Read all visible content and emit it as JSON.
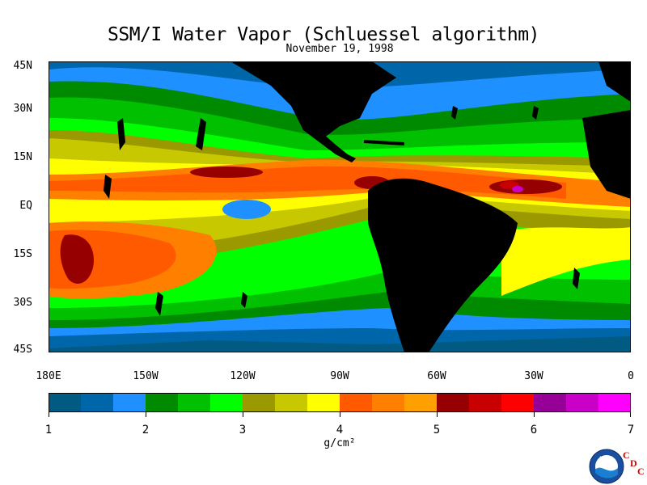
{
  "title": "SSM/I Water Vapor (Schluessel algorithm)",
  "subtitle": "November 19, 1998",
  "y_labels": [
    "45N",
    "30N",
    "15N",
    "EQ",
    "15S",
    "30S",
    "45S"
  ],
  "x_labels": [
    "180E",
    "150W",
    "120W",
    "90W",
    "60W",
    "30W",
    "0"
  ],
  "colorbar": {
    "colors": [
      "#005a82",
      "#0066aa",
      "#1e90ff",
      "#008a00",
      "#00c000",
      "#00ff00",
      "#9a9a00",
      "#c8c800",
      "#ffff00",
      "#ff5a00",
      "#ff7f00",
      "#ffa000",
      "#960000",
      "#c80000",
      "#ff0000",
      "#960096",
      "#c800c8",
      "#ff00ff"
    ],
    "tick_labels": [
      "1",
      "2",
      "3",
      "4",
      "5",
      "6",
      "7"
    ]
  },
  "units": "g/cm²",
  "logo": {
    "name": "NOAA",
    "text": "NOAA",
    "cdc": [
      "C",
      "D",
      "C"
    ]
  },
  "colors": {
    "land": "#000000",
    "background": "#ffffff"
  }
}
